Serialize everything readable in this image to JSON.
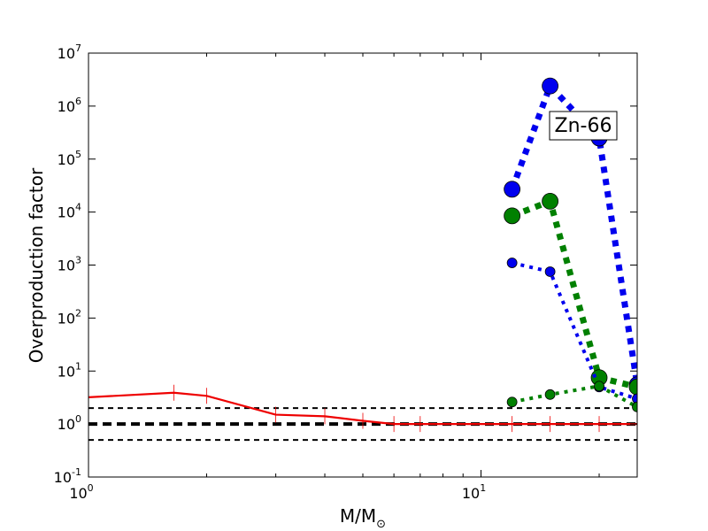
{
  "chart_data": {
    "type": "line",
    "title": "",
    "xlabel_main": "M/M",
    "xlabel_sub": "⊙",
    "ylabel": "Overproduction factor",
    "xscale": "log",
    "yscale": "log",
    "xlim": [
      1,
      25
    ],
    "ylim": [
      0.1,
      10000000
    ],
    "grid": false,
    "x_ticks": [
      {
        "value": 1,
        "base": "10",
        "exp": "0"
      },
      {
        "value": 10,
        "base": "10",
        "exp": "1"
      }
    ],
    "y_ticks": [
      {
        "value": 0.1,
        "base": "10",
        "exp": "-1"
      },
      {
        "value": 1,
        "base": "10",
        "exp": "0"
      },
      {
        "value": 10,
        "base": "10",
        "exp": "1"
      },
      {
        "value": 100,
        "base": "10",
        "exp": "2"
      },
      {
        "value": 1000,
        "base": "10",
        "exp": "3"
      },
      {
        "value": 10000,
        "base": "10",
        "exp": "4"
      },
      {
        "value": 100000,
        "base": "10",
        "exp": "5"
      },
      {
        "value": 1000000,
        "base": "10",
        "exp": "6"
      },
      {
        "value": 10000000,
        "base": "10",
        "exp": "7"
      }
    ],
    "annotation": "Zn-66",
    "reference_lines": [
      {
        "y": 2,
        "color": "#000000",
        "dash": "dashed",
        "width": "thin"
      },
      {
        "y": 1,
        "color": "#000000",
        "dash": "dashed",
        "width": "thick"
      },
      {
        "y": 0.5,
        "color": "#000000",
        "dash": "dashed",
        "width": "thin"
      }
    ],
    "series": [
      {
        "color": "#ee0000",
        "style": "solid",
        "marker": "vline",
        "x": [
          1,
          1.65,
          2,
          3,
          4,
          5,
          6,
          7,
          12,
          15,
          20,
          25
        ],
        "y": [
          3.2,
          3.9,
          3.4,
          1.5,
          1.4,
          1.15,
          1.0,
          1.0,
          1.0,
          1.0,
          1.0,
          1.0
        ]
      },
      {
        "color": "#0000ee",
        "style": "dotted-thick",
        "marker": "circle-large",
        "x": [
          12,
          15,
          20,
          25
        ],
        "y": [
          27000,
          2400000,
          250000,
          5.5
        ]
      },
      {
        "color": "#008000",
        "style": "dotted-thick",
        "marker": "circle-large",
        "x": [
          12,
          15,
          20,
          25
        ],
        "y": [
          8500,
          16000,
          7.5,
          5
        ]
      },
      {
        "color": "#0000ee",
        "style": "dotted-medium",
        "marker": "circle-small",
        "x": [
          12,
          15,
          20,
          25
        ],
        "y": [
          1100,
          750,
          5,
          3
        ]
      },
      {
        "color": "#008000",
        "style": "dotted-medium",
        "marker": "circle-small",
        "x": [
          12,
          15,
          20,
          25
        ],
        "y": [
          2.6,
          3.6,
          5.2,
          2.1
        ]
      }
    ]
  }
}
